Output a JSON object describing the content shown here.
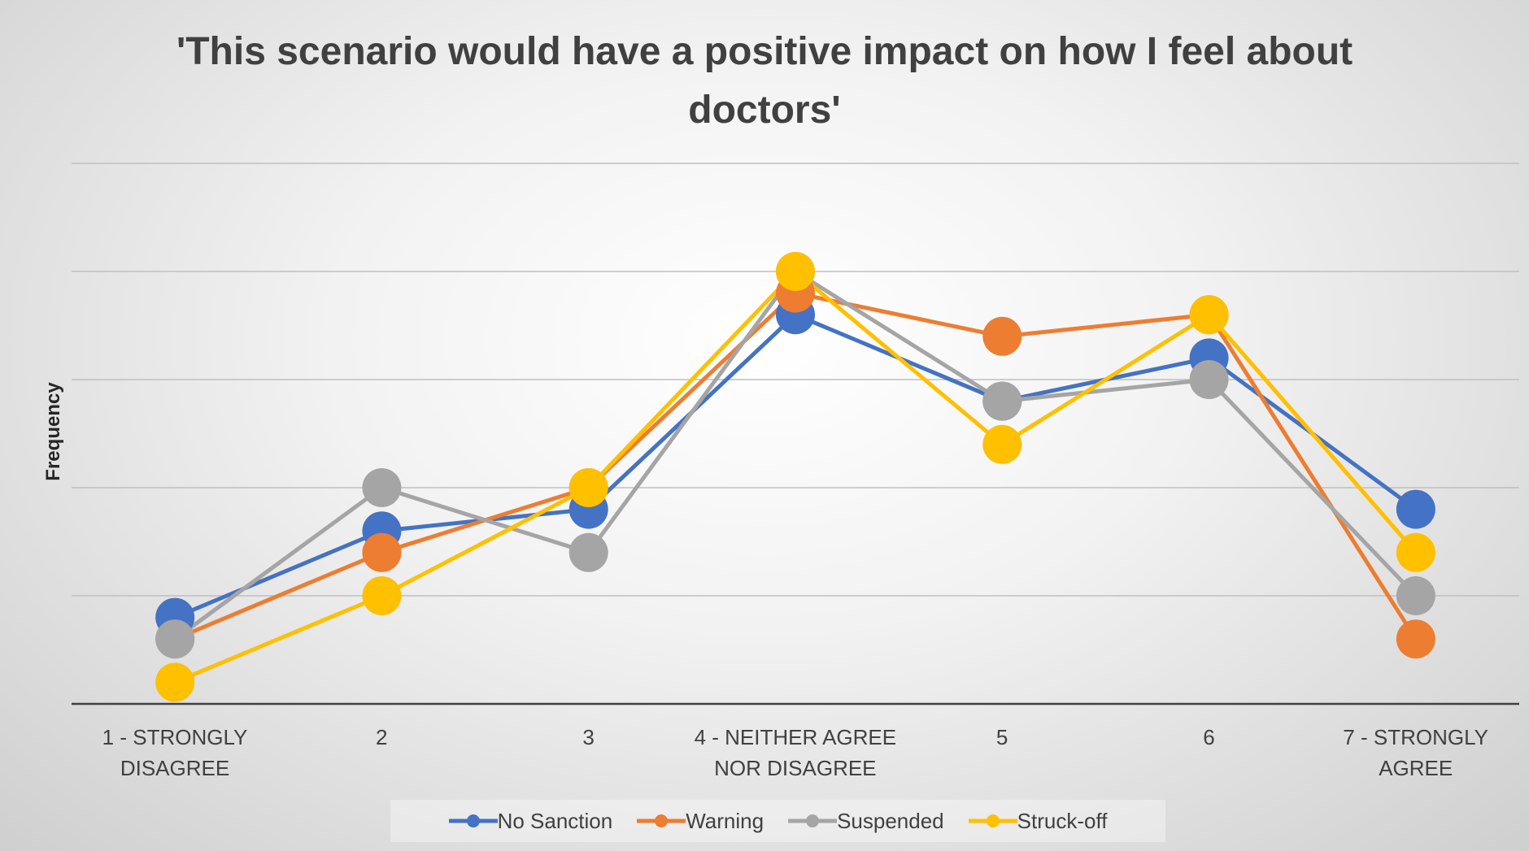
{
  "chart_data": {
    "type": "line",
    "title": "'This scenario would have a positive impact on how I feel about doctors'",
    "y_label": "Frequency",
    "categories": [
      "1 - STRONGLY DISAGREE",
      "2",
      "3",
      "4 - NEITHER AGREE NOR DISAGREE",
      "5",
      "6",
      "7 - STRONGLY AGREE"
    ],
    "series": [
      {
        "name": "No Sanction",
        "color": "#4472c4",
        "values": [
          0.8,
          1.6,
          1.8,
          3.6,
          2.8,
          3.2,
          1.8
        ]
      },
      {
        "name": "Warning",
        "color": "#ed7d31",
        "values": [
          0.6,
          1.4,
          2.0,
          3.8,
          3.4,
          3.6,
          0.6
        ]
      },
      {
        "name": "Suspended",
        "color": "#a5a5a5",
        "values": [
          0.6,
          2.0,
          1.4,
          4.0,
          2.8,
          3.0,
          1.0
        ]
      },
      {
        "name": "Struck-off",
        "color": "#ffc000",
        "values": [
          0.2,
          1.0,
          2.0,
          4.0,
          2.4,
          3.6,
          1.4
        ]
      }
    ],
    "ylim": [
      0,
      5
    ],
    "yticks": [
      0,
      1,
      2,
      3,
      4,
      5
    ],
    "grid": true,
    "legend": "bottom"
  }
}
